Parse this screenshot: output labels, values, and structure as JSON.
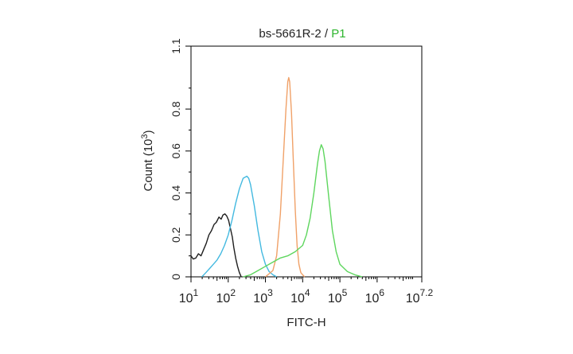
{
  "chart_data": {
    "type": "line",
    "title_parts": [
      "bs-5661R-2",
      " / ",
      "P1"
    ],
    "title_colors": [
      "#222222",
      "#222222",
      "#2db52d"
    ],
    "xlabel": "FITC-H",
    "ylabel": "Count (10",
    "ylabel_exp": "3",
    "ylabel_close": ")",
    "x_scale": "log",
    "xlim": [
      10,
      15848931.9
    ],
    "ylim": [
      0,
      1.1
    ],
    "x_ticks": [
      {
        "value": 10,
        "base": "10",
        "exp": "1"
      },
      {
        "value": 100,
        "base": "10",
        "exp": "2"
      },
      {
        "value": 1000,
        "base": "10",
        "exp": "3"
      },
      {
        "value": 10000,
        "base": "10",
        "exp": "4"
      },
      {
        "value": 100000,
        "base": "10",
        "exp": "5"
      },
      {
        "value": 1000000,
        "base": "10",
        "exp": "6"
      },
      {
        "value": 15848931.9,
        "base": "10",
        "exp": "7.2"
      }
    ],
    "y_ticks": [
      {
        "value": 0,
        "label": "0"
      },
      {
        "value": 0.2,
        "label": "0.2"
      },
      {
        "value": 0.4,
        "label": "0.4"
      },
      {
        "value": 0.6,
        "label": "0.6"
      },
      {
        "value": 0.8,
        "label": "0.8"
      },
      {
        "value": 1.1,
        "label": "1.1"
      }
    ],
    "grid": false,
    "series": [
      {
        "color": "#1e1e1e",
        "x": [
          10,
          11.5,
          13.5,
          15.8,
          18.6,
          21.9,
          25.7,
          30.2,
          35.5,
          41.7,
          47.9,
          56.2,
          64.6,
          72.4,
          81.3,
          91.2,
          102.3,
          114.8,
          128.8,
          141.3,
          158.5,
          177.8,
          199.5,
          223.9
        ],
        "y": [
          0.1,
          0.085,
          0.09,
          0.11,
          0.1,
          0.13,
          0.16,
          0.2,
          0.22,
          0.25,
          0.26,
          0.285,
          0.275,
          0.295,
          0.3,
          0.29,
          0.27,
          0.23,
          0.19,
          0.14,
          0.09,
          0.05,
          0.02,
          0.0
        ]
      },
      {
        "color": "#43b9e0",
        "x": [
          19.5,
          25.1,
          31.6,
          39.8,
          50.1,
          63.1,
          79.4,
          100,
          125.9,
          158.5,
          199.5,
          251.2,
          316.2,
          354.8,
          398.1,
          501.2,
          631,
          794.3,
          1000,
          1258.9,
          1584.9,
          1995.3
        ],
        "y": [
          0.0,
          0.02,
          0.04,
          0.06,
          0.08,
          0.11,
          0.15,
          0.2,
          0.27,
          0.35,
          0.42,
          0.47,
          0.48,
          0.47,
          0.44,
          0.34,
          0.22,
          0.12,
          0.06,
          0.025,
          0.01,
          0.0
        ]
      },
      {
        "color": "#f0a168",
        "x": [
          1000,
          1584.9,
          1995.3,
          2511.9,
          2985.4,
          3548.1,
          3981.1,
          4217,
          4466.8,
          5011.9,
          5623.4,
          6309.6,
          7079.5,
          7943.3,
          8912.5,
          10000,
          11220.2
        ],
        "y": [
          0.0,
          0.03,
          0.1,
          0.3,
          0.55,
          0.8,
          0.93,
          0.95,
          0.93,
          0.78,
          0.55,
          0.32,
          0.15,
          0.06,
          0.02,
          0.01,
          0.0
        ]
      },
      {
        "color": "#5ed65e",
        "x": [
          251.2,
          398.1,
          631,
          1000,
          1584.9,
          2511.9,
          3981.1,
          6309.6,
          10000,
          12589.3,
          15848.9,
          19952.6,
          25118.9,
          28183.8,
          31622.8,
          35481.3,
          39810.7,
          50118.7,
          63095.7,
          79432.8,
          100000,
          158489.3,
          251188.6,
          398107.2
        ],
        "y": [
          0.0,
          0.01,
          0.03,
          0.05,
          0.07,
          0.09,
          0.1,
          0.12,
          0.15,
          0.2,
          0.28,
          0.4,
          0.54,
          0.6,
          0.63,
          0.61,
          0.55,
          0.38,
          0.22,
          0.12,
          0.06,
          0.025,
          0.01,
          0.0
        ]
      }
    ]
  }
}
